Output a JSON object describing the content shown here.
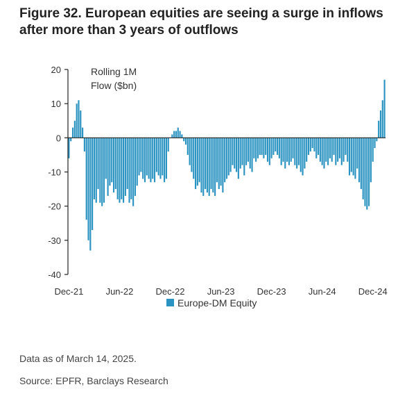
{
  "title_line1": "Figure 32. European equities are seeing a surge in inflows",
  "title_line2": "after more than 3 years of outflows",
  "notes": {
    "data_as_of": "Data as of March 14, 2025.",
    "source": "Source: EPFR, Barclays Research"
  },
  "colors": {
    "bar": "#2b93c1",
    "axis": "#222222",
    "text": "#333333"
  },
  "chart_data": {
    "type": "bar",
    "title": "",
    "ylabel_line1": "Rolling 1M",
    "ylabel_line2": "Flow ($bn)",
    "ylim": [
      -40,
      20
    ],
    "yticks": [
      20,
      10,
      0,
      -10,
      -20,
      -30,
      -40
    ],
    "x_tick_labels": [
      "Dec-21",
      "Jun-22",
      "Dec-22",
      "Jun-23",
      "Dec-23",
      "Jun-24",
      "Dec-24"
    ],
    "x_tick_weeks": [
      0,
      26,
      52,
      78,
      104,
      130,
      156
    ],
    "series": [
      {
        "name": "Europe-DM Equity",
        "frequency": "weekly",
        "start": "Dec-21",
        "values": [
          -6,
          -1,
          3,
          5,
          10,
          11,
          8,
          3,
          -4,
          -24,
          -30,
          -33,
          -27,
          -18,
          -19,
          -15,
          -19,
          -20,
          -19,
          -12,
          -17,
          -14,
          -13,
          -16,
          -15,
          -18,
          -19,
          -18,
          -19,
          -17,
          -15,
          -19,
          -18,
          -20,
          -17,
          -14,
          -11,
          -10,
          -12,
          -13,
          -11,
          -12,
          -13,
          -12,
          -13,
          -10,
          -11,
          -12,
          -11,
          -13,
          -12,
          -4,
          0,
          1,
          2,
          2,
          3,
          2,
          1,
          -1,
          -2,
          -5,
          -8,
          -10,
          -12,
          -15,
          -14,
          -13,
          -16,
          -17,
          -15,
          -16,
          -17,
          -15,
          -16,
          -17,
          -13,
          -15,
          -14,
          -16,
          -13,
          -12,
          -11,
          -10,
          -8,
          -9,
          -10,
          -12,
          -9,
          -8,
          -11,
          -8,
          -7,
          -9,
          -10,
          -6,
          -7,
          -6,
          -5,
          -5,
          -6,
          -5,
          -7,
          -8,
          -6,
          -5,
          -4,
          -5,
          -6,
          -8,
          -7,
          -9,
          -7,
          -8,
          -7,
          -6,
          -8,
          -9,
          -8,
          -10,
          -11,
          -9,
          -7,
          -5,
          -4,
          -3,
          -4,
          -6,
          -5,
          -7,
          -8,
          -9,
          -7,
          -8,
          -6,
          -7,
          -5,
          -8,
          -7,
          -6,
          -8,
          -7,
          -5,
          -7,
          -11,
          -10,
          -11,
          -12,
          -9,
          -13,
          -15,
          -18,
          -20,
          -21,
          -20,
          -13,
          -7,
          -3,
          -1,
          5,
          8,
          11,
          17
        ]
      }
    ],
    "legend": {
      "placement": "bottom-center",
      "label": "Europe-DM Equity"
    },
    "grid": false
  }
}
